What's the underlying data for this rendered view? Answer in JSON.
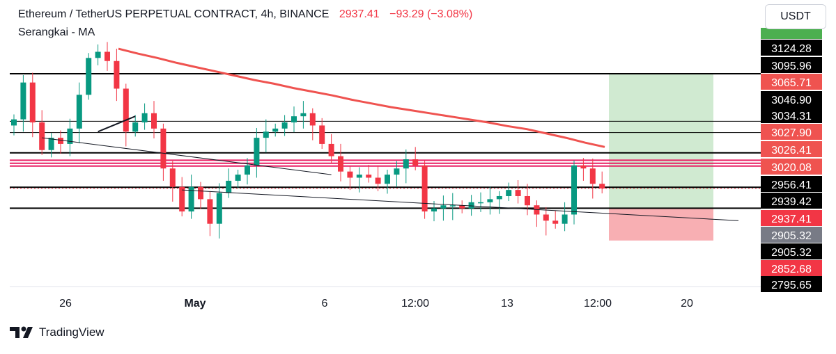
{
  "header": {
    "title": "Ethereum / TetherUS PERPETUAL CONTRACT, 4h, BINANCE",
    "price": "2937.41",
    "change": "−93.29 (−3.08%)",
    "indicator": "Serangkai - MA"
  },
  "currency_button": "USDT",
  "brand": "TradingView",
  "colors": {
    "up": "#089981",
    "down": "#f23645",
    "ma": "#ef5350",
    "hline_pink": "#e91e63",
    "tp_zone": "#c8e6c9",
    "sl_zone": "#f7a1a6"
  },
  "chart_data": {
    "type": "candlestick",
    "symbol": "ETHUSDT.P",
    "interval": "4h",
    "ylim": [
      2780,
      3190
    ],
    "x_ticks": [
      "26",
      "May",
      "6",
      "12:00",
      "13",
      "12:00",
      "20"
    ],
    "price_labels": [
      {
        "value": 3124.28,
        "text": "3124.28",
        "style": "black"
      },
      {
        "value": 3095.96,
        "text": "3095.96",
        "style": "black"
      },
      {
        "value": 3065.71,
        "text": "3065.71",
        "style": "pink"
      },
      {
        "value": 3046.9,
        "text": "3046.90",
        "style": "black"
      },
      {
        "value": 3034.31,
        "text": "3034.31",
        "style": "black"
      },
      {
        "value": 3027.9,
        "text": "3027.90",
        "style": "pink"
      },
      {
        "value": 3026.41,
        "text": "3026.41",
        "style": "pink"
      },
      {
        "value": 3020.08,
        "text": "3020.08",
        "style": "pink"
      },
      {
        "value": 2956.41,
        "text": "2956.41",
        "style": "black"
      },
      {
        "value": 2939.42,
        "text": "2939.42",
        "style": "black"
      },
      {
        "value": 2937.41,
        "text": "2937.41",
        "style": "red"
      },
      {
        "value": 2905.32,
        "text": "2905.32",
        "style": "grey"
      },
      {
        "value": 2905.32,
        "text": "2905.32",
        "style": "black"
      },
      {
        "value": 2852.68,
        "text": "2852.68",
        "style": "red"
      },
      {
        "value": 2795.65,
        "text": "2795.65",
        "style": "black"
      }
    ],
    "horizontal_levels": [
      {
        "value": 3124.28,
        "color": "black",
        "width": 2
      },
      {
        "value": 3046.9,
        "color": "black",
        "width": 1
      },
      {
        "value": 3028.5,
        "color": "black",
        "width": 1
      },
      {
        "value": 2995.5,
        "color": "black",
        "width": 2
      },
      {
        "value": 2983.5,
        "color": "pink",
        "width": 2
      },
      {
        "value": 2978.5,
        "color": "pink",
        "width": 2
      },
      {
        "value": 2974.0,
        "color": "pink",
        "width": 2
      },
      {
        "value": 2939.42,
        "color": "black",
        "width": 2
      },
      {
        "value": 2905.32,
        "color": "black",
        "width": 2
      }
    ],
    "position": {
      "entry": 2905.32,
      "take_profit": 3124.28,
      "stop_loss": 2852.68
    },
    "close": [
      3050,
      3110,
      3045,
      3000,
      3020,
      3010,
      3035,
      3090,
      3150,
      3160,
      3145,
      3100,
      3030,
      3045,
      3060,
      3035,
      2970,
      2940,
      2900,
      2940,
      2920,
      2880,
      2930,
      2950,
      2960,
      2975,
      3020,
      3030,
      3035,
      3045,
      3055,
      3060,
      3040,
      3010,
      2990,
      2965,
      2955,
      2960,
      2955,
      2945,
      2960,
      2970,
      2985,
      2975,
      2900,
      2905,
      2910,
      2910,
      2905,
      2915,
      2915,
      2920,
      2925,
      2935,
      2925,
      2910,
      2895,
      2885,
      2880,
      2895,
      2975,
      2970,
      2945,
      2937.41
    ],
    "ma": [
      3165,
      3157,
      3150,
      3142,
      3135,
      3128,
      3121,
      3114,
      3108,
      3101,
      3095,
      3089,
      3082,
      3076,
      3070,
      3065,
      3060,
      3055,
      3050,
      3045,
      3039,
      3034,
      3027,
      3020,
      3012,
      3005
    ],
    "trendlines": [
      {
        "from": [
          3.0,
          3020
        ],
        "to": [
          34.0,
          2960
        ]
      },
      {
        "from": [
          18.0,
          2935
        ],
        "to": [
          50.0,
          2885
        ]
      },
      {
        "from": [
          9.0,
          3030
        ],
        "to": [
          13.0,
          3055
        ]
      }
    ]
  }
}
